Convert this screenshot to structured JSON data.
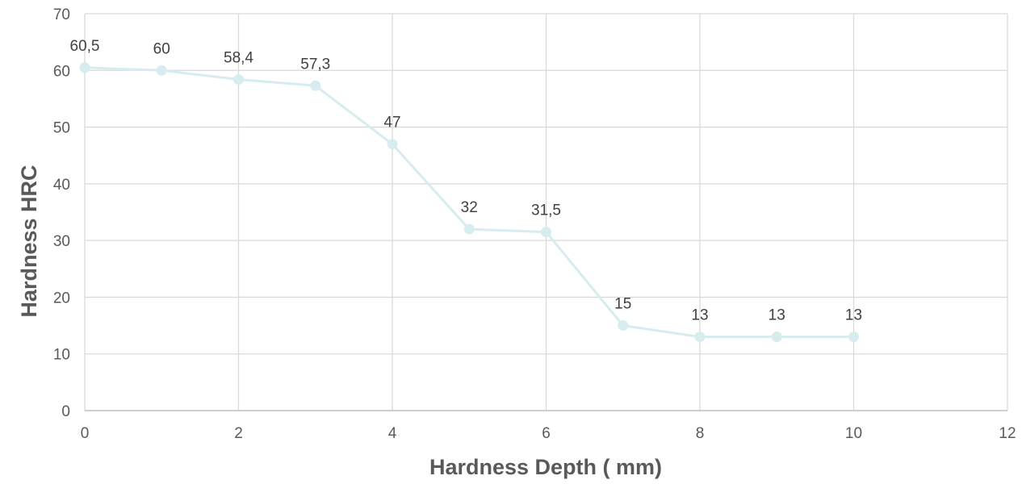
{
  "chart_data": {
    "type": "line",
    "title": "",
    "xlabel": "Hardness Depth ( mm)",
    "ylabel": "Hardness HRC",
    "xlim": [
      0,
      12
    ],
    "ylim": [
      0,
      70
    ],
    "x_ticks": [
      0,
      2,
      4,
      6,
      8,
      10,
      12
    ],
    "y_ticks": [
      0,
      10,
      20,
      30,
      40,
      50,
      60,
      70
    ],
    "grid": true,
    "legend": "none",
    "series": [
      {
        "x": [
          0,
          1,
          2,
          3,
          4,
          5,
          6,
          7,
          8,
          9,
          10
        ],
        "y": [
          60.5,
          60,
          58.4,
          57.3,
          47,
          32,
          31.5,
          15,
          13,
          13,
          13
        ],
        "data_labels": [
          "60,5",
          "60",
          "58,4",
          "57,3",
          "47",
          "32",
          "31,5",
          "15",
          "13",
          "13",
          "13"
        ],
        "color": "#d6ecee",
        "marker": "circle"
      }
    ]
  }
}
